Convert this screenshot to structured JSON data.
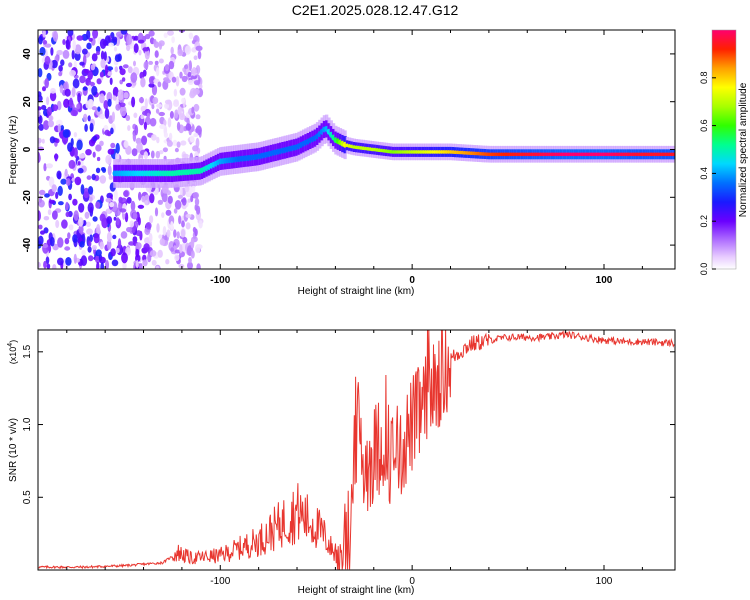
{
  "title": "C2E1.2025.028.12.47.G12",
  "colors": {
    "snr_line": "#e8362f",
    "frame": "#000000",
    "grid": "#000000"
  },
  "chart_data": [
    {
      "type": "heatmap",
      "title": "C2E1.2025.028.12.47.G12",
      "xlabel": "Height of straight line (km)",
      "ylabel": "Frequency (Hz)",
      "xlim": [
        -195,
        137
      ],
      "ylim": [
        -50,
        50
      ],
      "x_ticks": [
        -100,
        0,
        100
      ],
      "x_tick_labels": [
        "-100",
        "0",
        "100"
      ],
      "y_ticks": [
        -40,
        -20,
        0,
        20,
        40
      ],
      "y_tick_labels": [
        "-40",
        "-20",
        "0",
        "20",
        "40"
      ],
      "colorbar": {
        "label": "Normalized spectral amplitude",
        "range": [
          0,
          1
        ],
        "ticks": [
          0.0,
          0.2,
          0.4,
          0.6,
          0.8
        ],
        "tick_labels": [
          "0.0",
          "0.2",
          "0.4",
          "0.6",
          "0.8"
        ]
      },
      "ridge": {
        "x": [
          -155,
          -140,
          -125,
          -110,
          -100,
          -90,
          -80,
          -70,
          -60,
          -50,
          -45,
          -40,
          -35,
          -30,
          -20,
          -10,
          0,
          20,
          40,
          60,
          80,
          100,
          120,
          137
        ],
        "freq": [
          -10,
          -10,
          -10,
          -9,
          -5,
          -4,
          -3,
          -1,
          1,
          5,
          9,
          4,
          2,
          1,
          0,
          -1,
          -1,
          -1,
          -2,
          -2,
          -2,
          -2,
          -2,
          -2
        ],
        "amplitude": [
          0.4,
          0.45,
          0.5,
          0.5,
          0.4,
          0.35,
          0.35,
          0.35,
          0.35,
          0.35,
          0.4,
          0.55,
          0.75,
          0.7,
          0.7,
          0.65,
          0.7,
          0.8,
          0.9,
          0.95,
          1.0,
          1.0,
          0.95,
          0.95
        ]
      },
      "noise_region_x": [
        -195,
        -110
      ]
    },
    {
      "type": "line",
      "title": "",
      "xlabel": "Height of straight line (km)",
      "ylabel": "SNR (10 * v/v)",
      "scale_note": "(x10",
      "scale_exp": "4",
      "scale_close": ")",
      "xlim": [
        -195,
        137
      ],
      "ylim": [
        0,
        1.65
      ],
      "x_ticks": [
        -100,
        0,
        100
      ],
      "x_tick_labels": [
        "-100",
        "0",
        "100"
      ],
      "y_ticks": [
        0.5,
        1.0,
        1.5
      ],
      "y_tick_labels": [
        "0.5",
        "1.0",
        "1.5"
      ],
      "series": [
        {
          "x": [
            -195,
            -170,
            -150,
            -130,
            -122,
            -115,
            -100,
            -90,
            -80,
            -70,
            -60,
            -55,
            -50,
            -45,
            -40,
            -36,
            -32,
            -30,
            -28,
            -25,
            -20,
            -15,
            -10,
            -5,
            0,
            5,
            10,
            15,
            20,
            30,
            40,
            50,
            60,
            70,
            80,
            90,
            100,
            110,
            120,
            137
          ],
          "values": [
            0.02,
            0.02,
            0.03,
            0.05,
            0.12,
            0.08,
            0.1,
            0.15,
            0.2,
            0.3,
            0.4,
            0.35,
            0.3,
            0.22,
            0.1,
            0.05,
            0.3,
            0.75,
            1.0,
            0.7,
            0.8,
            0.9,
            0.75,
            0.85,
            1.0,
            1.1,
            1.2,
            1.35,
            1.45,
            1.55,
            1.58,
            1.6,
            1.6,
            1.6,
            1.62,
            1.6,
            1.58,
            1.57,
            1.57,
            1.56
          ]
        }
      ]
    }
  ]
}
